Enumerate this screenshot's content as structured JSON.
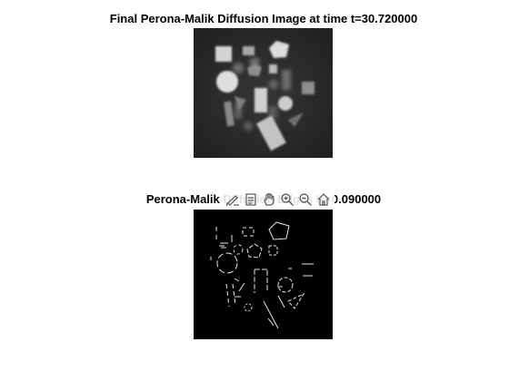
{
  "figure": {
    "top_title": "Final Perona-Malik Diffusion Image at time t=30.720000",
    "bottom_title": "Perona-Malik Diffusion Edges K=0.090000"
  },
  "toolbar": {
    "buttons": [
      {
        "name": "brush-icon",
        "tooltip": "Brush/Select Data"
      },
      {
        "name": "datatip-icon",
        "tooltip": "Data Tips"
      },
      {
        "name": "pan-icon",
        "tooltip": "Pan"
      },
      {
        "name": "zoom-in-icon",
        "tooltip": "Zoom In"
      },
      {
        "name": "zoom-out-icon",
        "tooltip": "Zoom Out"
      },
      {
        "name": "home-icon",
        "tooltip": "Restore View"
      }
    ]
  },
  "colors": {
    "background": "#ffffff",
    "axes_background": "#000000",
    "image_bg": "#2e2e2e",
    "shape_light": "#d8d8d8",
    "shape_mid": "#9a9a9a",
    "shape_dark": "#5e5e5e",
    "edge": "#e6e6e6"
  }
}
